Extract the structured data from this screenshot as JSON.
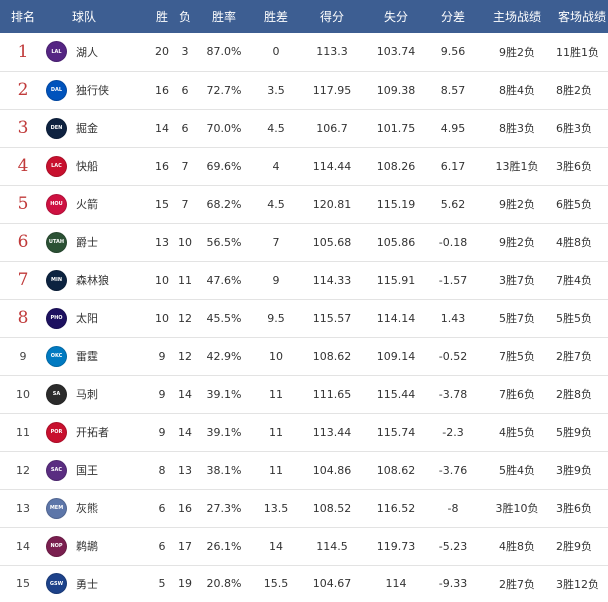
{
  "headers": {
    "rank": "排名",
    "team": "球队",
    "wins": "胜",
    "losses": "负",
    "pct": "胜率",
    "gb": "胜差",
    "pf": "得分",
    "pa": "失分",
    "diff": "分差",
    "home": "主场战绩",
    "away": "客场战绩"
  },
  "rows": [
    {
      "rank": "1",
      "abbr": "LAL",
      "color": "#552583",
      "name": "湖人",
      "w": "20",
      "l": "3",
      "pct": "87.0%",
      "gb": "0",
      "pf": "113.3",
      "pa": "103.74",
      "diff": "9.56",
      "home": "9胜2负",
      "away": "11胜1负"
    },
    {
      "rank": "2",
      "abbr": "DAL",
      "color": "#0053bc",
      "name": "独行侠",
      "w": "16",
      "l": "6",
      "pct": "72.7%",
      "gb": "3.5",
      "pf": "117.95",
      "pa": "109.38",
      "diff": "8.57",
      "home": "8胜4负",
      "away": "8胜2负"
    },
    {
      "rank": "3",
      "abbr": "DEN",
      "color": "#0e2240",
      "name": "掘金",
      "w": "14",
      "l": "6",
      "pct": "70.0%",
      "gb": "4.5",
      "pf": "106.7",
      "pa": "101.75",
      "diff": "4.95",
      "home": "8胜3负",
      "away": "6胜3负"
    },
    {
      "rank": "4",
      "abbr": "LAC",
      "color": "#c8102e",
      "name": "快船",
      "w": "16",
      "l": "7",
      "pct": "69.6%",
      "gb": "4",
      "pf": "114.44",
      "pa": "108.26",
      "diff": "6.17",
      "home": "13胜1负",
      "away": "3胜6负"
    },
    {
      "rank": "5",
      "abbr": "HOU",
      "color": "#ce1141",
      "name": "火箭",
      "w": "15",
      "l": "7",
      "pct": "68.2%",
      "gb": "4.5",
      "pf": "120.81",
      "pa": "115.19",
      "diff": "5.62",
      "home": "9胜2负",
      "away": "6胜5负"
    },
    {
      "rank": "6",
      "abbr": "UTAH",
      "color": "#2b5134",
      "name": "爵士",
      "w": "13",
      "l": "10",
      "pct": "56.5%",
      "gb": "7",
      "pf": "105.68",
      "pa": "105.86",
      "diff": "-0.18",
      "home": "9胜2负",
      "away": "4胜8负"
    },
    {
      "rank": "7",
      "abbr": "MIN",
      "color": "#0c2340",
      "name": "森林狼",
      "w": "10",
      "l": "11",
      "pct": "47.6%",
      "gb": "9",
      "pf": "114.33",
      "pa": "115.91",
      "diff": "-1.57",
      "home": "3胜7负",
      "away": "7胜4负"
    },
    {
      "rank": "8",
      "abbr": "PHO",
      "color": "#1d1160",
      "name": "太阳",
      "w": "10",
      "l": "12",
      "pct": "45.5%",
      "gb": "9.5",
      "pf": "115.57",
      "pa": "114.14",
      "diff": "1.43",
      "home": "5胜7负",
      "away": "5胜5负"
    },
    {
      "rank": "9",
      "abbr": "OKC",
      "color": "#007ac1",
      "name": "雷霆",
      "w": "9",
      "l": "12",
      "pct": "42.9%",
      "gb": "10",
      "pf": "108.62",
      "pa": "109.14",
      "diff": "-0.52",
      "home": "7胜5负",
      "away": "2胜7负"
    },
    {
      "rank": "10",
      "abbr": "SA",
      "color": "#2b2b2b",
      "name": "马刺",
      "w": "9",
      "l": "14",
      "pct": "39.1%",
      "gb": "11",
      "pf": "111.65",
      "pa": "115.44",
      "diff": "-3.78",
      "home": "7胜6负",
      "away": "2胜8负"
    },
    {
      "rank": "11",
      "abbr": "POR",
      "color": "#c8102e",
      "name": "开拓者",
      "w": "9",
      "l": "14",
      "pct": "39.1%",
      "gb": "11",
      "pf": "113.44",
      "pa": "115.74",
      "diff": "-2.3",
      "home": "4胜5负",
      "away": "5胜9负"
    },
    {
      "rank": "12",
      "abbr": "SAC",
      "color": "#5a2d81",
      "name": "国王",
      "w": "8",
      "l": "13",
      "pct": "38.1%",
      "gb": "11",
      "pf": "104.86",
      "pa": "108.62",
      "diff": "-3.76",
      "home": "5胜4负",
      "away": "3胜9负"
    },
    {
      "rank": "13",
      "abbr": "MEM",
      "color": "#5d76a9",
      "name": "灰熊",
      "w": "6",
      "l": "16",
      "pct": "27.3%",
      "gb": "13.5",
      "pf": "108.52",
      "pa": "116.52",
      "diff": "-8",
      "home": "3胜10负",
      "away": "3胜6负"
    },
    {
      "rank": "14",
      "abbr": "NOP",
      "color": "#7a1f4f",
      "name": "鹈鹕",
      "w": "6",
      "l": "17",
      "pct": "26.1%",
      "gb": "14",
      "pf": "114.5",
      "pa": "119.73",
      "diff": "-5.23",
      "home": "4胜8负",
      "away": "2胜9负"
    },
    {
      "rank": "15",
      "abbr": "GSW",
      "color": "#1d428a",
      "name": "勇士",
      "w": "5",
      "l": "19",
      "pct": "20.8%",
      "gb": "15.5",
      "pf": "104.67",
      "pa": "114",
      "diff": "-9.33",
      "home": "2胜7负",
      "away": "3胜12负"
    }
  ]
}
